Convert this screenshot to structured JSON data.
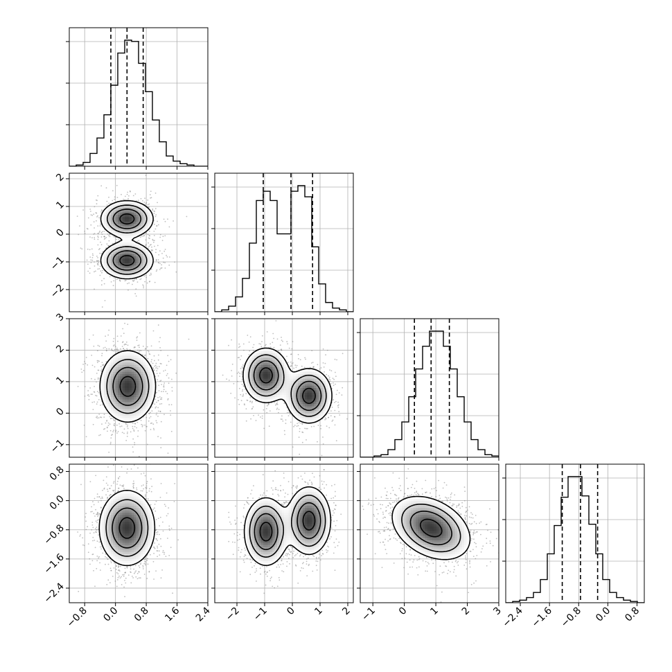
{
  "chart_data": {
    "type": "corner",
    "n_params": 4,
    "params": [
      {
        "range": [
          -1.2,
          2.4
        ],
        "ticks": [
          -0.8,
          0.0,
          0.8,
          1.6,
          2.4
        ],
        "tick_labels": [
          "−0.8",
          "0.0",
          "0.8",
          "1.6",
          "2.4"
        ]
      },
      {
        "range": [
          -2.8,
          2.2
        ],
        "ticks": [
          -2,
          -1,
          0,
          1,
          2
        ],
        "tick_labels": [
          "−2",
          "−1",
          "0",
          "1",
          "2"
        ]
      },
      {
        "range": [
          -1.4,
          3.0
        ],
        "ticks": [
          -1,
          0,
          1,
          2,
          3
        ],
        "tick_labels": [
          "−1",
          "0",
          "1",
          "2",
          "3"
        ]
      },
      {
        "range": [
          -2.8,
          1.0
        ],
        "ticks": [
          -2.4,
          -1.6,
          -0.8,
          0.0,
          0.8
        ],
        "tick_labels": [
          "−2.4",
          "−1.6",
          "−0.8",
          "0.0",
          "0.8"
        ]
      }
    ],
    "histograms": [
      {
        "param": 0,
        "bin_start": -1.2,
        "bin_width": 0.18,
        "counts": [
          0,
          1,
          3,
          10,
          22,
          40,
          63,
          88,
          98,
          97,
          80,
          58,
          36,
          19,
          8,
          4,
          2,
          1,
          0,
          0
        ],
        "quantiles": [
          -0.12,
          0.3,
          0.72
        ]
      },
      {
        "param": 1,
        "bin_start": -2.8,
        "bin_width": 0.25,
        "counts": [
          0,
          1,
          3,
          8,
          18,
          37,
          60,
          65,
          60,
          42,
          42,
          65,
          68,
          62,
          35,
          15,
          5,
          2,
          1,
          0
        ],
        "quantiles": [
          -1.05,
          -0.05,
          0.73
        ]
      },
      {
        "param": 2,
        "bin_start": -1.4,
        "bin_width": 0.22,
        "counts": [
          0,
          0,
          1,
          2,
          6,
          14,
          28,
          48,
          70,
          88,
          100,
          100,
          88,
          70,
          48,
          28,
          14,
          6,
          2,
          1
        ],
        "quantiles": [
          0.32,
          0.85,
          1.43
        ]
      },
      {
        "param": 3,
        "bin_start": -2.8,
        "bin_width": 0.19,
        "counts": [
          0,
          1,
          2,
          4,
          8,
          18,
          38,
          60,
          82,
          98,
          98,
          83,
          61,
          38,
          18,
          8,
          4,
          2,
          1,
          0
        ],
        "quantiles": [
          -1.25,
          -0.75,
          -0.28
        ]
      }
    ],
    "densities": [
      {
        "x": 0,
        "y": 1,
        "components": [
          {
            "mx": 0.3,
            "my": 0.55,
            "sx": 0.33,
            "sy": 0.32,
            "w": 0.5
          },
          {
            "mx": 0.3,
            "my": -0.95,
            "sx": 0.33,
            "sy": 0.32,
            "w": 0.5
          }
        ]
      },
      {
        "x": 0,
        "y": 2,
        "components": [
          {
            "mx": 0.32,
            "my": 0.85,
            "sx": 0.35,
            "sy": 0.55,
            "w": 1
          }
        ]
      },
      {
        "x": 1,
        "y": 2,
        "components": [
          {
            "mx": -0.95,
            "my": 1.2,
            "sx": 0.4,
            "sy": 0.42,
            "w": 0.5
          },
          {
            "mx": 0.6,
            "my": 0.55,
            "sx": 0.4,
            "sy": 0.42,
            "w": 0.5
          }
        ]
      },
      {
        "x": 0,
        "y": 3,
        "components": [
          {
            "mx": 0.3,
            "my": -0.75,
            "sx": 0.35,
            "sy": 0.5,
            "w": 1
          }
        ]
      },
      {
        "x": 1,
        "y": 3,
        "components": [
          {
            "mx": -0.95,
            "my": -0.85,
            "sx": 0.38,
            "sy": 0.45,
            "w": 0.5
          },
          {
            "mx": 0.6,
            "my": -0.55,
            "sx": 0.38,
            "sy": 0.45,
            "w": 0.5
          }
        ]
      },
      {
        "x": 2,
        "y": 3,
        "components": [
          {
            "mx": 0.85,
            "my": -0.75,
            "sx": 0.6,
            "sy": 0.42,
            "w": 1,
            "rho": -0.35
          }
        ]
      }
    ],
    "contour_levels": [
      0.12,
      0.3,
      0.55,
      0.85
    ],
    "colors": {
      "ink": "#000000",
      "grid": "#b0b0b0",
      "scatter": "#888888",
      "background": "#ffffff"
    },
    "grid": true,
    "title": "",
    "xlabel": "",
    "ylabel": ""
  }
}
